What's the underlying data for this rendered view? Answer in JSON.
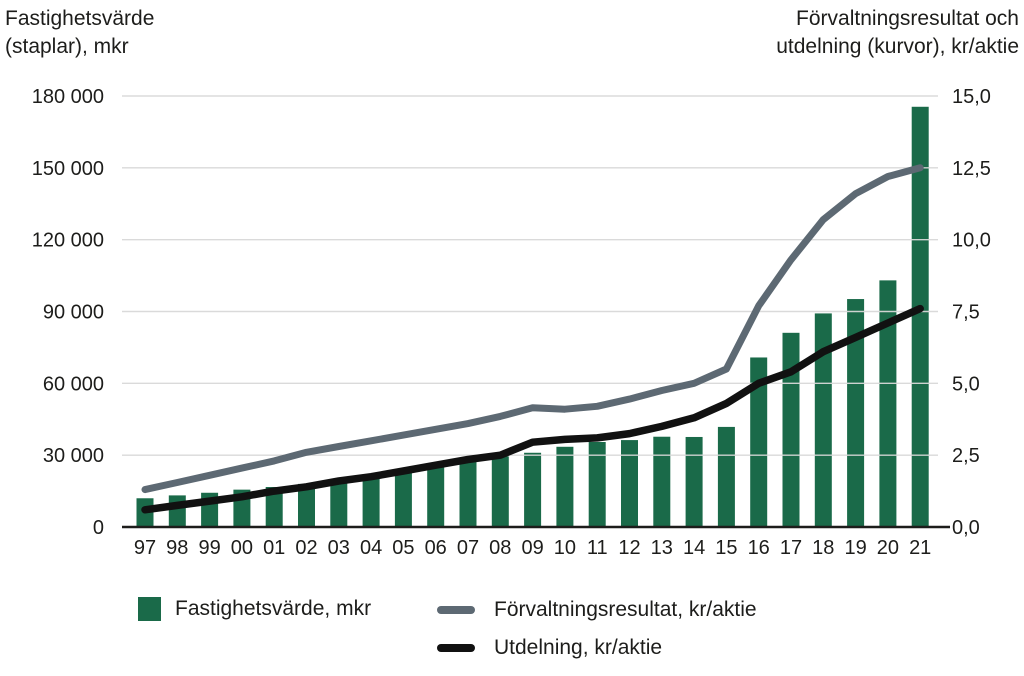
{
  "titles": {
    "left_line1": "Fastighetsvärde",
    "left_line2": "(staplar), mkr",
    "right_line1": "Förvaltningsresultat och",
    "right_line2": "utdelning (kurvor), kr/aktie"
  },
  "colors": {
    "bar_green": "#1A6A49",
    "line_gray": "#5D6973",
    "line_black": "#111111",
    "grid": "#D8D8D8",
    "axis": "#1d1d1b",
    "text": "#1d1d1b"
  },
  "chart_data": {
    "type": "combo-bar-line-dual-axis",
    "categories": [
      "97",
      "98",
      "99",
      "00",
      "01",
      "02",
      "03",
      "04",
      "05",
      "06",
      "07",
      "08",
      "09",
      "10",
      "11",
      "12",
      "13",
      "14",
      "15",
      "16",
      "17",
      "18",
      "19",
      "20",
      "21"
    ],
    "series": [
      {
        "name": "Fastighetsvärde, mkr",
        "type": "bar",
        "axis": "left",
        "color": "#1A6A49",
        "values": [
          12000,
          13200,
          14300,
          15600,
          16700,
          18000,
          19600,
          21100,
          23700,
          26000,
          28500,
          29500,
          31000,
          33500,
          35500,
          36300,
          37700,
          37600,
          41800,
          70800,
          81100,
          89200,
          95200,
          103000,
          175500
        ]
      },
      {
        "name": "Förvaltningsresultat, kr/aktie",
        "type": "line",
        "axis": "right",
        "color": "#5D6973",
        "values": [
          1.3,
          1.55,
          1.8,
          2.05,
          2.3,
          2.6,
          2.8,
          3.0,
          3.2,
          3.4,
          3.6,
          3.85,
          4.15,
          4.1,
          4.2,
          4.45,
          4.75,
          5.0,
          5.5,
          7.7,
          9.3,
          10.7,
          11.6,
          12.2,
          12.5
        ]
      },
      {
        "name": "Utdelning, kr/aktie",
        "type": "line",
        "axis": "right",
        "color": "#111111",
        "values": [
          0.6,
          0.75,
          0.9,
          1.05,
          1.25,
          1.4,
          1.6,
          1.75,
          1.95,
          2.15,
          2.35,
          2.5,
          2.95,
          3.05,
          3.1,
          3.25,
          3.5,
          3.8,
          4.3,
          5.0,
          5.4,
          6.1,
          6.6,
          7.1,
          7.6
        ]
      }
    ],
    "left_axis": {
      "title": "Fastighetsvärde (staplar), mkr",
      "min": 0,
      "max": 180000,
      "tick_step": 30000,
      "tick_labels": [
        "0",
        "30 000",
        "60 000",
        "90 000",
        "120 000",
        "150 000",
        "180 000"
      ]
    },
    "right_axis": {
      "title": "Förvaltningsresultat och utdelning (kurvor), kr/aktie",
      "min": 0,
      "max": 15,
      "tick_step": 2.5,
      "tick_labels": [
        "0,0",
        "2,5",
        "5,0",
        "7,5",
        "10,0",
        "12,5",
        "15,0"
      ]
    },
    "grid": true,
    "legend_position": "bottom"
  }
}
